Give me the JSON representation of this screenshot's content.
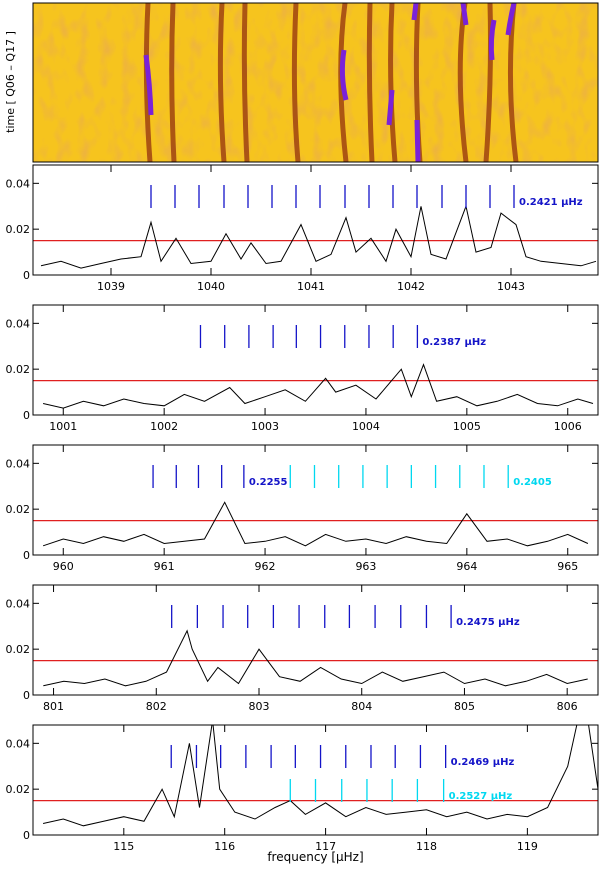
{
  "chart_data": [
    {
      "type": "spectrogram",
      "ylabel": "time [ Q06 – Q17 ]"
    },
    {
      "type": "line",
      "xlim": [
        1038.22,
        1043.87
      ],
      "xticks": [
        1039,
        1040,
        1041,
        1042,
        1043
      ],
      "ylim": [
        0,
        0.048
      ],
      "yticks": [
        0,
        0.02,
        0.04
      ],
      "color": "#000000",
      "threshold": 0.015,
      "threshold_color": "#e02020",
      "x": [
        1038.3,
        1038.5,
        1038.7,
        1038.9,
        1039.1,
        1039.3,
        1039.4,
        1039.5,
        1039.65,
        1039.8,
        1040.0,
        1040.15,
        1040.3,
        1040.4,
        1040.55,
        1040.7,
        1040.9,
        1041.05,
        1041.2,
        1041.35,
        1041.45,
        1041.6,
        1041.75,
        1041.85,
        1042.0,
        1042.1,
        1042.2,
        1042.35,
        1042.55,
        1042.65,
        1042.8,
        1042.9,
        1043.05,
        1043.15,
        1043.3,
        1043.5,
        1043.7,
        1043.85
      ],
      "values": [
        0.004,
        0.006,
        0.003,
        0.005,
        0.007,
        0.008,
        0.023,
        0.006,
        0.016,
        0.005,
        0.006,
        0.018,
        0.007,
        0.014,
        0.005,
        0.006,
        0.022,
        0.006,
        0.009,
        0.025,
        0.01,
        0.016,
        0.006,
        0.02,
        0.008,
        0.03,
        0.009,
        0.007,
        0.03,
        0.01,
        0.012,
        0.027,
        0.022,
        0.008,
        0.006,
        0.005,
        0.004,
        0.006
      ],
      "combs": [
        {
          "color": "#1414c8",
          "label": "0.2421 μHz",
          "positions": [
            1039.4,
            1039.64,
            1039.88,
            1040.13,
            1040.37,
            1040.61,
            1040.85,
            1041.09,
            1041.34,
            1041.58,
            1041.82,
            1042.06,
            1042.31,
            1042.55,
            1042.79,
            1043.03
          ]
        }
      ]
    },
    {
      "type": "line",
      "xlim": [
        1000.7,
        1006.3
      ],
      "xticks": [
        1001,
        1002,
        1003,
        1004,
        1005,
        1006
      ],
      "ylim": [
        0,
        0.048
      ],
      "yticks": [
        0,
        0.02,
        0.04
      ],
      "color": "#000000",
      "threshold": 0.015,
      "threshold_color": "#e02020",
      "x": [
        1000.8,
        1001.0,
        1001.2,
        1001.4,
        1001.6,
        1001.8,
        1002.0,
        1002.2,
        1002.4,
        1002.65,
        1002.8,
        1003.0,
        1003.2,
        1003.4,
        1003.6,
        1003.7,
        1003.9,
        1004.1,
        1004.35,
        1004.45,
        1004.57,
        1004.7,
        1004.9,
        1005.1,
        1005.3,
        1005.5,
        1005.7,
        1005.9,
        1006.1,
        1006.25
      ],
      "values": [
        0.005,
        0.003,
        0.006,
        0.004,
        0.007,
        0.005,
        0.004,
        0.009,
        0.006,
        0.012,
        0.005,
        0.008,
        0.011,
        0.006,
        0.016,
        0.01,
        0.013,
        0.007,
        0.02,
        0.008,
        0.022,
        0.006,
        0.008,
        0.004,
        0.006,
        0.009,
        0.005,
        0.004,
        0.007,
        0.005
      ],
      "combs": [
        {
          "color": "#1414c8",
          "label": "0.2387 μHz",
          "positions": [
            1002.36,
            1002.6,
            1002.84,
            1003.08,
            1003.31,
            1003.55,
            1003.79,
            1004.03,
            1004.27,
            1004.51
          ]
        }
      ]
    },
    {
      "type": "line",
      "xlim": [
        959.7,
        965.3
      ],
      "xticks": [
        960,
        961,
        962,
        963,
        964,
        965
      ],
      "ylim": [
        0,
        0.048
      ],
      "yticks": [
        0,
        0.02,
        0.04
      ],
      "color": "#000000",
      "threshold": 0.015,
      "threshold_color": "#e02020",
      "x": [
        959.8,
        960.0,
        960.2,
        960.4,
        960.6,
        960.8,
        961.0,
        961.2,
        961.4,
        961.6,
        961.8,
        962.0,
        962.2,
        962.4,
        962.6,
        962.8,
        963.0,
        963.2,
        963.4,
        963.6,
        963.8,
        964.0,
        964.2,
        964.4,
        964.6,
        964.8,
        965.0,
        965.2
      ],
      "values": [
        0.004,
        0.007,
        0.005,
        0.008,
        0.006,
        0.009,
        0.005,
        0.006,
        0.007,
        0.023,
        0.005,
        0.006,
        0.008,
        0.004,
        0.009,
        0.006,
        0.007,
        0.005,
        0.008,
        0.006,
        0.005,
        0.018,
        0.006,
        0.007,
        0.004,
        0.006,
        0.009,
        0.005
      ],
      "combs": [
        {
          "color": "#1414c8",
          "label": "0.2255",
          "positions": [
            960.89,
            961.12,
            961.34,
            961.57,
            961.79
          ]
        },
        {
          "color": "#00d8f0",
          "label": "0.2405",
          "positions": [
            962.25,
            962.49,
            962.73,
            962.97,
            963.21,
            963.45,
            963.69,
            963.93,
            964.17,
            964.41
          ]
        }
      ]
    },
    {
      "type": "line",
      "xlim": [
        800.8,
        806.3
      ],
      "xticks": [
        801,
        802,
        803,
        804,
        805,
        806
      ],
      "ylim": [
        0,
        0.048
      ],
      "yticks": [
        0,
        0.02,
        0.04
      ],
      "color": "#000000",
      "threshold": 0.015,
      "threshold_color": "#e02020",
      "x": [
        800.9,
        801.1,
        801.3,
        801.5,
        801.7,
        801.9,
        802.1,
        802.3,
        802.35,
        802.5,
        802.6,
        802.8,
        803.0,
        803.2,
        803.4,
        803.6,
        803.8,
        804.0,
        804.2,
        804.4,
        804.6,
        804.8,
        805.0,
        805.2,
        805.4,
        805.6,
        805.8,
        806.0,
        806.2
      ],
      "values": [
        0.004,
        0.006,
        0.005,
        0.007,
        0.004,
        0.006,
        0.01,
        0.028,
        0.02,
        0.006,
        0.012,
        0.005,
        0.02,
        0.008,
        0.006,
        0.012,
        0.007,
        0.005,
        0.01,
        0.006,
        0.008,
        0.01,
        0.005,
        0.007,
        0.004,
        0.006,
        0.009,
        0.005,
        0.007
      ],
      "combs": [
        {
          "color": "#1414c8",
          "label": "0.2475 μHz",
          "positions": [
            802.15,
            802.4,
            802.65,
            802.89,
            803.14,
            803.39,
            803.64,
            803.88,
            804.13,
            804.38,
            804.63,
            804.87
          ]
        }
      ]
    },
    {
      "type": "line",
      "xlim": [
        114.1,
        119.7
      ],
      "xticks": [
        115,
        116,
        117,
        118,
        119
      ],
      "ylim": [
        0,
        0.048
      ],
      "yticks": [
        0,
        0.02,
        0.04
      ],
      "color": "#000000",
      "threshold": 0.015,
      "threshold_color": "#e02020",
      "xlabel": "frequency [μHz]",
      "x": [
        114.2,
        114.4,
        114.6,
        114.8,
        115.0,
        115.2,
        115.38,
        115.5,
        115.65,
        115.75,
        115.88,
        115.95,
        116.1,
        116.3,
        116.5,
        116.65,
        116.8,
        117.0,
        117.2,
        117.4,
        117.6,
        117.8,
        118.0,
        118.2,
        118.4,
        118.6,
        118.8,
        119.0,
        119.2,
        119.4,
        119.5,
        119.6,
        119.7
      ],
      "values": [
        0.005,
        0.007,
        0.004,
        0.006,
        0.008,
        0.006,
        0.02,
        0.008,
        0.04,
        0.012,
        0.05,
        0.02,
        0.01,
        0.007,
        0.012,
        0.015,
        0.009,
        0.014,
        0.008,
        0.012,
        0.009,
        0.01,
        0.011,
        0.008,
        0.01,
        0.007,
        0.009,
        0.008,
        0.012,
        0.03,
        0.05,
        0.05,
        0.02
      ],
      "combs": [
        {
          "color": "#1414c8",
          "label": "0.2469 μHz",
          "positions": [
            115.47,
            115.72,
            115.96,
            116.21,
            116.46,
            116.7,
            116.95,
            117.2,
            117.45,
            117.69,
            117.94,
            118.19
          ]
        },
        {
          "color": "#00d8f0",
          "label": "0.2527 μHz",
          "positions": [
            116.65,
            116.9,
            117.16,
            117.41,
            117.66,
            117.91,
            118.17
          ]
        }
      ]
    }
  ]
}
